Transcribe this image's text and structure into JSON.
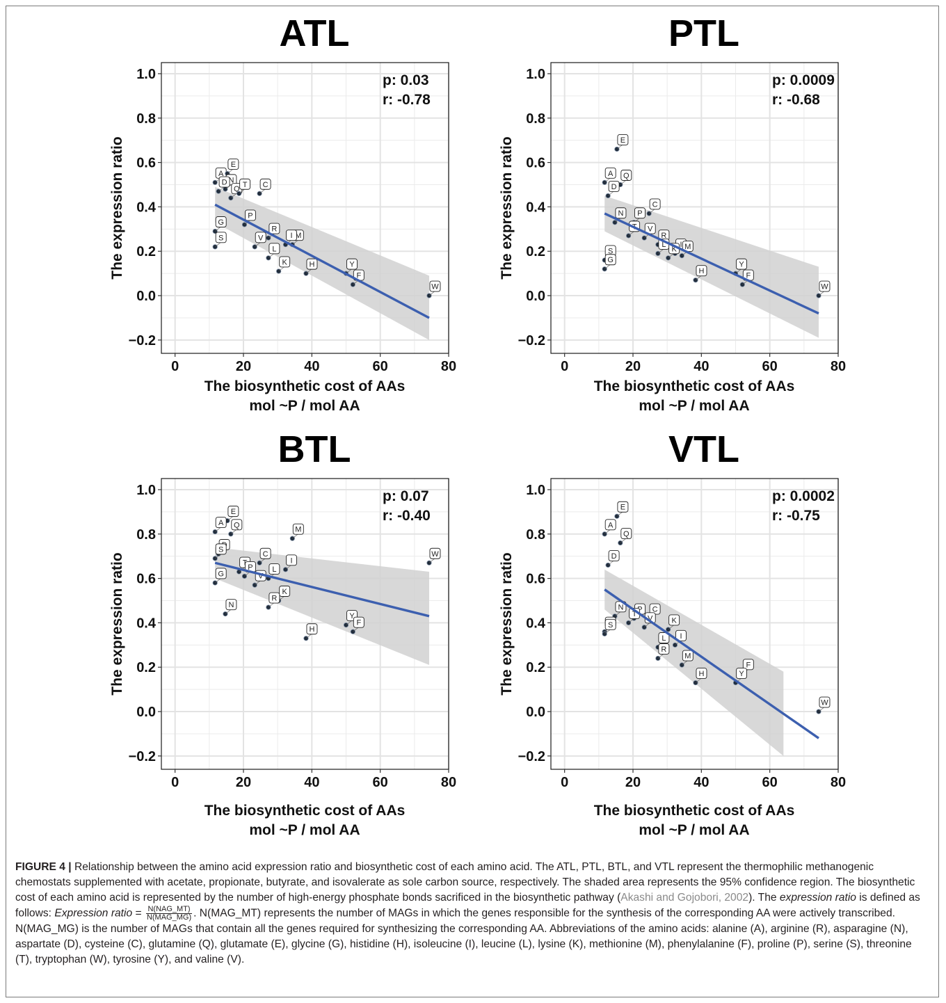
{
  "figure": {
    "caption": {
      "label": "FIGURE 4 |",
      "p1": " Relationship between the amino acid expression ratio and biosynthetic cost of each amino acid. The ATL, PTL, BTL, and VTL represent the thermophilic methanogenic chemostats supplemented with acetate, propionate, butyrate, and isovalerate as sole carbon source, respectively. The shaded area represents the 95% confidence region. The biosynthetic cost of each amino acid is represented by the number of high-energy phosphate bonds sacrificed in the biosynthetic pathway (",
      "ref": "Akashi and Gojobori, 2002",
      "p2": "). The ",
      "term": "expression ratio",
      "p3": " is defined as follows: ",
      "term2": "Expression ratio",
      "p4": " = ",
      "frac_num": "N(NAG_MT)",
      "frac_den": "N(MAG_MG)",
      "p5": ". N(MAG_MT) represents the number of MAGs in which the genes responsible for the synthesis of the corresponding AA were actively transcribed. N(MAG_MG) is the number of MAGs that contain all the genes required for synthesizing the corresponding AA. Abbreviations of the amino acids: alanine (A), arginine (R), asparagine (N), aspartate (D), cysteine (C), glutamine (Q), glutamate (E), glycine (G), histidine (H), isoleucine (I), leucine (L), lysine (K), methionine (M), phenylalanine (F), proline (P), serine (S), threonine (T), tryptophan (W), tyrosine (Y), and valine (V)."
    }
  },
  "chart_data": [
    {
      "type": "scatter",
      "title": "ATL",
      "stat_p": "p: 0.03",
      "stat_r": "r: -0.78",
      "xlabel": "The biosynthetic cost of AAs",
      "xlabel2": "mol ~P / mol AA",
      "ylabel": "The expression ratio",
      "xlim": [
        -4,
        80
      ],
      "ylim": [
        -0.26,
        1.05
      ],
      "xticks": [
        0,
        20,
        40,
        60,
        80
      ],
      "yticks": [
        -0.2,
        0.0,
        0.2,
        0.4,
        0.6,
        0.8,
        1.0
      ],
      "ytick_labels": [
        "−0.2",
        "0.0",
        "0.2",
        "0.4",
        "0.6",
        "0.8",
        "1.0"
      ],
      "grid": true,
      "points": [
        {
          "label": "A",
          "x": 11.7,
          "y": 0.51
        },
        {
          "label": "E",
          "x": 15.3,
          "y": 0.55
        },
        {
          "label": "N",
          "x": 14.7,
          "y": 0.48
        },
        {
          "label": "D",
          "x": 12.7,
          "y": 0.47
        },
        {
          "label": "Q",
          "x": 16.3,
          "y": 0.44
        },
        {
          "label": "T",
          "x": 18.7,
          "y": 0.46
        },
        {
          "label": "C",
          "x": 24.7,
          "y": 0.46
        },
        {
          "label": "G",
          "x": 11.7,
          "y": 0.29
        },
        {
          "label": "P",
          "x": 20.3,
          "y": 0.32
        },
        {
          "label": "R",
          "x": 27.3,
          "y": 0.26
        },
        {
          "label": "M",
          "x": 34.3,
          "y": 0.23
        },
        {
          "label": "S",
          "x": 11.7,
          "y": 0.22
        },
        {
          "label": "V",
          "x": 23.3,
          "y": 0.22
        },
        {
          "label": "I",
          "x": 32.3,
          "y": 0.23
        },
        {
          "label": "L",
          "x": 27.3,
          "y": 0.17
        },
        {
          "label": "Y",
          "x": 50.0,
          "y": 0.1
        },
        {
          "label": "K",
          "x": 30.3,
          "y": 0.11
        },
        {
          "label": "H",
          "x": 38.3,
          "y": 0.1
        },
        {
          "label": "F",
          "x": 52.0,
          "y": 0.05
        },
        {
          "label": "W",
          "x": 74.3,
          "y": 0.0
        }
      ],
      "fit": {
        "x": [
          11.7,
          74.3
        ],
        "y": [
          0.41,
          -0.1
        ]
      },
      "ci": {
        "x": [
          11.7,
          74.3
        ],
        "lower": [
          0.33,
          -0.2
        ],
        "upper": [
          0.49,
          0.09
        ]
      }
    },
    {
      "type": "scatter",
      "title": "PTL",
      "stat_p": "p: 0.0009",
      "stat_r": "r: -0.68",
      "xlabel": "The biosynthetic cost of AAs",
      "xlabel2": "mol ~P / mol AA",
      "ylabel": "The expression ratio",
      "xlim": [
        -4,
        80
      ],
      "ylim": [
        -0.26,
        1.05
      ],
      "xticks": [
        0,
        20,
        40,
        60,
        80
      ],
      "yticks": [
        -0.2,
        0.0,
        0.2,
        0.4,
        0.6,
        0.8,
        1.0
      ],
      "ytick_labels": [
        "−0.2",
        "0.0",
        "0.2",
        "0.4",
        "0.6",
        "0.8",
        "1.0"
      ],
      "grid": true,
      "points": [
        {
          "label": "E",
          "x": 15.3,
          "y": 0.66
        },
        {
          "label": "A",
          "x": 11.7,
          "y": 0.51
        },
        {
          "label": "Q",
          "x": 16.3,
          "y": 0.5
        },
        {
          "label": "D",
          "x": 12.7,
          "y": 0.45
        },
        {
          "label": "C",
          "x": 24.7,
          "y": 0.37
        },
        {
          "label": "P",
          "x": 20.3,
          "y": 0.33
        },
        {
          "label": "N",
          "x": 14.7,
          "y": 0.33
        },
        {
          "label": "V",
          "x": 23.3,
          "y": 0.26
        },
        {
          "label": "R",
          "x": 27.3,
          "y": 0.23
        },
        {
          "label": "T",
          "x": 18.7,
          "y": 0.27
        },
        {
          "label": "I",
          "x": 32.3,
          "y": 0.19
        },
        {
          "label": "L",
          "x": 27.3,
          "y": 0.19
        },
        {
          "label": "M",
          "x": 34.3,
          "y": 0.18
        },
        {
          "label": "K",
          "x": 30.3,
          "y": 0.17
        },
        {
          "label": "S",
          "x": 11.7,
          "y": 0.16
        },
        {
          "label": "G",
          "x": 11.7,
          "y": 0.12
        },
        {
          "label": "Y",
          "x": 50.0,
          "y": 0.1
        },
        {
          "label": "H",
          "x": 38.3,
          "y": 0.07
        },
        {
          "label": "F",
          "x": 52.0,
          "y": 0.05
        },
        {
          "label": "W",
          "x": 74.3,
          "y": 0.0
        }
      ],
      "fit": {
        "x": [
          11.7,
          74.3
        ],
        "y": [
          0.37,
          -0.08
        ]
      },
      "ci": {
        "x": [
          11.7,
          74.3
        ],
        "lower": [
          0.29,
          -0.19
        ],
        "upper": [
          0.45,
          0.13
        ]
      }
    },
    {
      "type": "scatter",
      "title": "BTL",
      "stat_p": "p: 0.07",
      "stat_r": "r: -0.40",
      "xlabel": "The biosynthetic cost of AAs",
      "xlabel2": "mol ~P / mol AA",
      "ylabel": "The expression ratio",
      "xlim": [
        -4,
        80
      ],
      "ylim": [
        -0.26,
        1.05
      ],
      "xticks": [
        0,
        20,
        40,
        60,
        80
      ],
      "yticks": [
        -0.2,
        0.0,
        0.2,
        0.4,
        0.6,
        0.8,
        1.0
      ],
      "ytick_labels": [
        "−0.2",
        "0.0",
        "0.2",
        "0.4",
        "0.6",
        "0.8",
        "1.0"
      ],
      "grid": true,
      "points": [
        {
          "label": "E",
          "x": 15.3,
          "y": 0.86
        },
        {
          "label": "Q",
          "x": 16.3,
          "y": 0.8
        },
        {
          "label": "A",
          "x": 11.7,
          "y": 0.81
        },
        {
          "label": "D",
          "x": 12.7,
          "y": 0.71
        },
        {
          "label": "M",
          "x": 34.3,
          "y": 0.78
        },
        {
          "label": "C",
          "x": 24.7,
          "y": 0.67
        },
        {
          "label": "I",
          "x": 32.3,
          "y": 0.64
        },
        {
          "label": "S",
          "x": 11.7,
          "y": 0.69
        },
        {
          "label": "T",
          "x": 18.7,
          "y": 0.63
        },
        {
          "label": "W",
          "x": 74.3,
          "y": 0.67
        },
        {
          "label": "L",
          "x": 27.3,
          "y": 0.6
        },
        {
          "label": "G",
          "x": 11.7,
          "y": 0.58
        },
        {
          "label": "P",
          "x": 20.3,
          "y": 0.61
        },
        {
          "label": "V",
          "x": 23.3,
          "y": 0.57
        },
        {
          "label": "K",
          "x": 30.3,
          "y": 0.5
        },
        {
          "label": "R",
          "x": 27.3,
          "y": 0.47
        },
        {
          "label": "N",
          "x": 14.7,
          "y": 0.44
        },
        {
          "label": "Y",
          "x": 50.0,
          "y": 0.39
        },
        {
          "label": "F",
          "x": 52.0,
          "y": 0.36
        },
        {
          "label": "H",
          "x": 38.3,
          "y": 0.33
        }
      ],
      "fit": {
        "x": [
          11.7,
          74.3
        ],
        "y": [
          0.67,
          0.43
        ]
      },
      "ci": {
        "x": [
          11.7,
          74.3
        ],
        "lower": [
          0.6,
          0.21
        ],
        "upper": [
          0.74,
          0.63
        ]
      }
    },
    {
      "type": "scatter",
      "title": "VTL",
      "stat_p": "p: 0.0002",
      "stat_r": "r: -0.75",
      "xlabel": "The biosynthetic cost of AAs",
      "xlabel2": "mol ~P / mol AA",
      "ylabel": "The expression ratio",
      "xlim": [
        -4,
        80
      ],
      "ylim": [
        -0.26,
        1.05
      ],
      "xticks": [
        0,
        20,
        40,
        60,
        80
      ],
      "yticks": [
        -0.2,
        0.0,
        0.2,
        0.4,
        0.6,
        0.8,
        1.0
      ],
      "ytick_labels": [
        "−0.2",
        "0.0",
        "0.2",
        "0.4",
        "0.6",
        "0.8",
        "1.0"
      ],
      "grid": true,
      "points": [
        {
          "label": "E",
          "x": 15.3,
          "y": 0.88
        },
        {
          "label": "A",
          "x": 11.7,
          "y": 0.8
        },
        {
          "label": "Q",
          "x": 16.3,
          "y": 0.76
        },
        {
          "label": "D",
          "x": 12.7,
          "y": 0.66
        },
        {
          "label": "N",
          "x": 14.7,
          "y": 0.43
        },
        {
          "label": "P",
          "x": 20.3,
          "y": 0.42
        },
        {
          "label": "C",
          "x": 24.7,
          "y": 0.42
        },
        {
          "label": "K",
          "x": 30.3,
          "y": 0.37
        },
        {
          "label": "G",
          "x": 11.7,
          "y": 0.36
        },
        {
          "label": "T",
          "x": 18.7,
          "y": 0.4
        },
        {
          "label": "S",
          "x": 11.7,
          "y": 0.35
        },
        {
          "label": "V",
          "x": 23.3,
          "y": 0.38
        },
        {
          "label": "L",
          "x": 27.3,
          "y": 0.29
        },
        {
          "label": "I",
          "x": 32.3,
          "y": 0.3
        },
        {
          "label": "R",
          "x": 27.3,
          "y": 0.24
        },
        {
          "label": "M",
          "x": 34.3,
          "y": 0.21
        },
        {
          "label": "F",
          "x": 52.0,
          "y": 0.17
        },
        {
          "label": "H",
          "x": 38.3,
          "y": 0.13
        },
        {
          "label": "Y",
          "x": 50.0,
          "y": 0.13
        },
        {
          "label": "W",
          "x": 74.3,
          "y": 0.0
        }
      ],
      "fit": {
        "x": [
          11.7,
          74.3
        ],
        "y": [
          0.55,
          -0.12
        ]
      },
      "ci": {
        "x": [
          11.7,
          64.0
        ],
        "lower": [
          0.46,
          -0.2
        ],
        "upper": [
          0.64,
          0.18
        ]
      }
    }
  ],
  "colors": {
    "fit_line": "#3c5faf",
    "ci_fill": "#d1d1d1",
    "point": "#1f2b3a",
    "grid": "#ebebeb",
    "caption_text": "#231f20",
    "ref_text": "#8a8a8a"
  }
}
